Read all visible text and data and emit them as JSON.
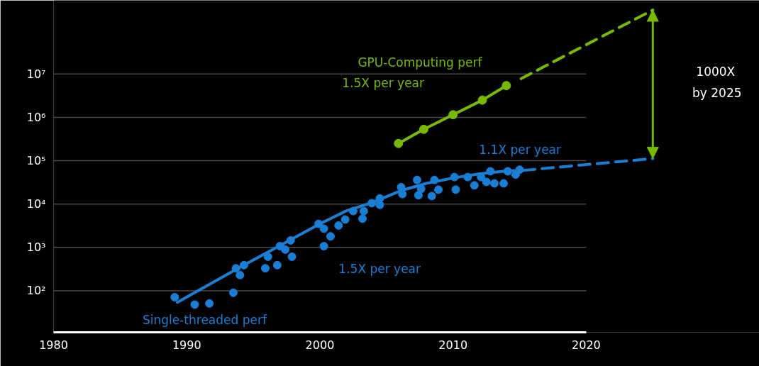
{
  "chart_data": {
    "type": "scatter",
    "log": "y",
    "xlim": [
      1980,
      2033
    ],
    "ylim": [
      11,
      500000000
    ],
    "xticks": [
      1980,
      1990,
      2000,
      2010,
      2020
    ],
    "yticks": [
      {
        "value": 100,
        "label": "10²"
      },
      {
        "value": 1000,
        "label": "10³"
      },
      {
        "value": 10000,
        "label": "10⁴"
      },
      {
        "value": 100000,
        "label": "10⁵"
      },
      {
        "value": 1000000,
        "label": "10⁶"
      },
      {
        "value": 10000000,
        "label": "10⁷"
      }
    ],
    "grid": "y",
    "series": [
      {
        "name": "Single-threaded perf",
        "color": "#1a7fd4",
        "marker": "circle",
        "x": [
          1989.1,
          1990.6,
          1991.7,
          1993.5,
          1993.7,
          1994.0,
          1994.3,
          1995.9,
          1996.1,
          1996.8,
          1997.0,
          1997.4,
          1997.8,
          1997.9,
          1999.9,
          2000.3,
          2000.3,
          2000.8,
          2001.4,
          2001.9,
          2002.5,
          2003.2,
          2003.3,
          2003.9,
          2004.5,
          2004.5,
          2006.1,
          2006.2,
          2007.3,
          2007.4,
          2007.6,
          2008.4,
          2008.6,
          2008.9,
          2010.1,
          2010.2,
          2011.1,
          2011.6,
          2012.1,
          2012.5,
          2012.8,
          2013.1,
          2013.8,
          2014.1,
          2014.7,
          2015.0
        ],
        "values": [
          71,
          48,
          51,
          90,
          330,
          230,
          390,
          330,
          610,
          390,
          1070,
          890,
          1450,
          610,
          3500,
          2700,
          1070,
          1800,
          3200,
          4400,
          6900,
          4600,
          6900,
          10500,
          13500,
          9600,
          24500,
          17000,
          36000,
          16000,
          22400,
          15300,
          36000,
          21500,
          42000,
          21500,
          42000,
          27000,
          42000,
          32500,
          57000,
          30000,
          30000,
          57000,
          48000,
          62000
        ]
      },
      {
        "type": "line",
        "color": "#1a7fd4",
        "line_style": "solid",
        "x": [
          1989.3,
          1994,
          1997,
          2000,
          2002,
          2004,
          2006,
          2008,
          2010,
          2012,
          2014,
          2015.3
        ],
        "values": [
          54,
          350,
          1100,
          3500,
          7000,
          11000,
          20000,
          30000,
          40000,
          50000,
          58000,
          60000
        ]
      },
      {
        "type": "line",
        "color": "#1a7fd4",
        "line_style": "dashed",
        "x": [
          2015.3,
          2025
        ],
        "values": [
          60000,
          112000
        ]
      },
      {
        "type": "line",
        "name": "GPU-Computing perf",
        "color": "#76b900",
        "line_style": "solid",
        "marker": "circle",
        "x": [
          2005.9,
          2007.8,
          2010.0,
          2012.2,
          2014.0
        ],
        "values": [
          250000,
          530000,
          1150000,
          2500000,
          5400000
        ]
      },
      {
        "type": "line",
        "color": "#76b900",
        "line_style": "dashed",
        "x": [
          2015.1,
          2025
        ],
        "values": [
          7800000,
          300000000
        ]
      }
    ],
    "annotations": [
      "1.5X per year",
      "1.1X per year",
      "1.5X per year",
      "1000X",
      "by 2025"
    ]
  }
}
